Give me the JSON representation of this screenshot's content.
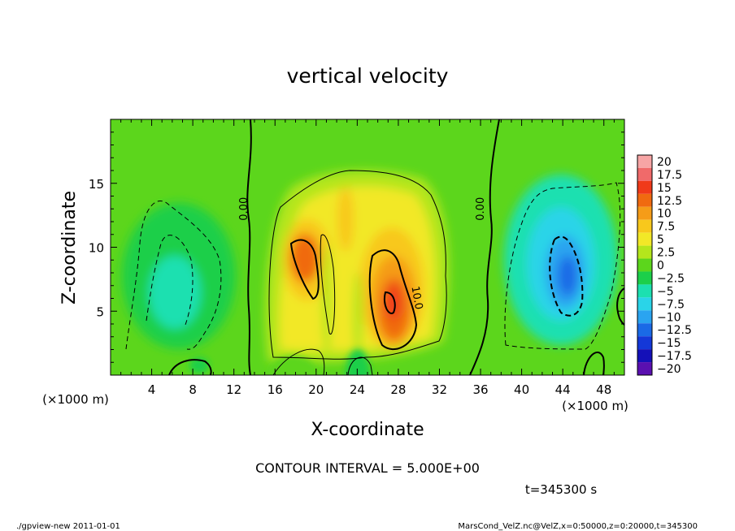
{
  "title": "vertical velocity",
  "contour_interval_label": "CONTOUR INTERVAL = 5.000E+00",
  "time_label": "t=345300 s",
  "footer_left": "./gpview-new  2011-01-01",
  "footer_right": "MarsCond_VelZ.nc@VelZ,x=0:50000,z=0:20000,t=345300",
  "chart_data": {
    "type": "heatmap",
    "title": "vertical velocity",
    "xlabel": "X-coordinate",
    "ylabel": "Z-coordinate",
    "x_unit_label_left": "(×1000 m)",
    "x_unit_label_right": "(×1000 m)",
    "xlim": [
      0,
      50
    ],
    "ylim": [
      0,
      20
    ],
    "x_ticks": [
      4,
      8,
      12,
      16,
      20,
      24,
      28,
      32,
      36,
      40,
      44,
      48
    ],
    "y_ticks": [
      5,
      10,
      15
    ],
    "contour_interval": 5.0,
    "contour_labels": [
      {
        "text": "0.00",
        "x": 13.3,
        "z": 13.0
      },
      {
        "text": "0.00",
        "x": 36.3,
        "z": 13.0
      },
      {
        "text": "10.0",
        "x": 29.5,
        "z": 6.0
      }
    ],
    "colorbar": {
      "levels": [
        20,
        17.5,
        15,
        12.5,
        10,
        7.5,
        5,
        2.5,
        0,
        -2.5,
        -5,
        -7.5,
        -10,
        -12.5,
        -15,
        -17.5,
        -20
      ],
      "colors": [
        "#f7a5a5",
        "#f06a6a",
        "#f03a1a",
        "#f06a10",
        "#f59c18",
        "#f8c81c",
        "#f2e827",
        "#b4e61c",
        "#5cd61c",
        "#1ccf4a",
        "#1ce0b0",
        "#2ad4e8",
        "#2aa4f0",
        "#1a6ae6",
        "#1438d8",
        "#1410b8",
        "#5a10b0"
      ]
    },
    "features": [
      {
        "kind": "updraft-core",
        "center_x": 18.5,
        "center_z": 8.5,
        "max": 12.5
      },
      {
        "kind": "updraft-core",
        "center_x": 27.0,
        "center_z": 7.0,
        "max": 15.0
      },
      {
        "kind": "downdraft-core",
        "center_x": 44.5,
        "center_z": 8.0,
        "min": -12.5
      },
      {
        "kind": "downdraft",
        "center_x": 6.5,
        "center_z": 6.0,
        "min": -7.5
      }
    ]
  }
}
